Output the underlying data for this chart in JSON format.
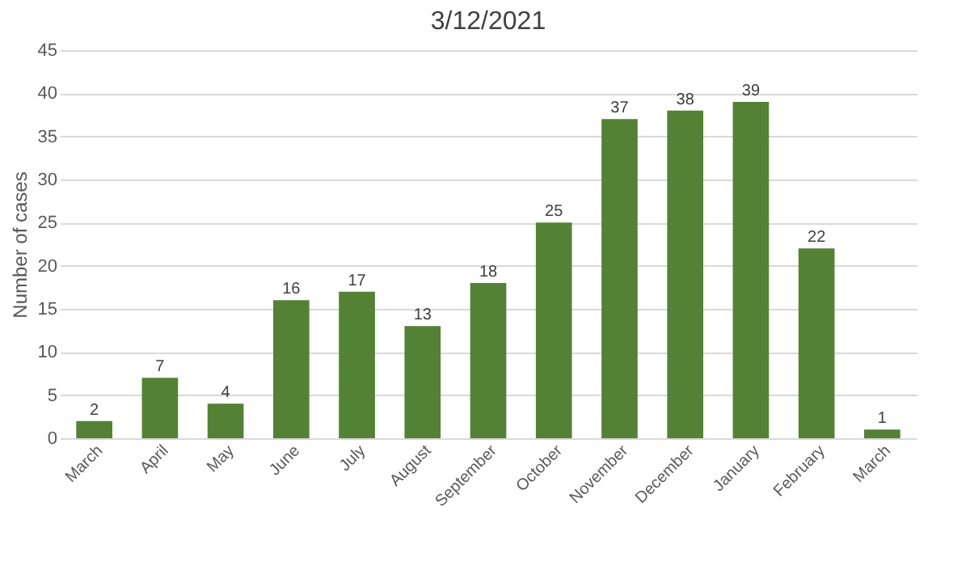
{
  "chart_data": {
    "type": "bar",
    "title": "3/12/2021",
    "ylabel": "Number of cases",
    "categories": [
      "March",
      "April",
      "May",
      "June",
      "July",
      "August",
      "September",
      "October",
      "November",
      "December",
      "January",
      "February",
      "March"
    ],
    "values": [
      2,
      7,
      4,
      16,
      17,
      13,
      18,
      25,
      37,
      38,
      39,
      22,
      1
    ],
    "color": "#548235",
    "ylim": [
      0,
      45
    ],
    "yticks": [
      0,
      5,
      10,
      15,
      20,
      25,
      30,
      35,
      40,
      45
    ],
    "grid": "y",
    "data_labels": true
  }
}
